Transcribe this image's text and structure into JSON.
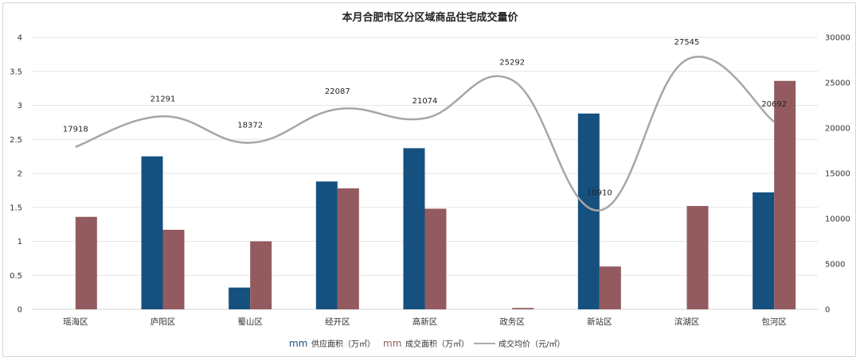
{
  "chart_data": {
    "type": "bar-line-combo",
    "title": "本月合肥市区分区域商品住宅成交量价",
    "categories": [
      "瑶海区",
      "庐阳区",
      "蜀山区",
      "经开区",
      "高新区",
      "政务区",
      "新站区",
      "滨湖区",
      "包河区"
    ],
    "left_axis": {
      "min": 0,
      "max": 4,
      "ticks": [
        "0",
        "0.5",
        "1",
        "1.5",
        "2",
        "2.5",
        "3",
        "3.5",
        "4"
      ]
    },
    "right_axis": {
      "min": 0,
      "max": 30000,
      "ticks": [
        "0",
        "5000",
        "10000",
        "15000",
        "20000",
        "25000",
        "30000"
      ]
    },
    "series": [
      {
        "name": "供应面积（万㎡）",
        "type": "bar",
        "axis": "left",
        "color": "#16507f",
        "values": [
          0,
          2.25,
          0.32,
          1.88,
          2.37,
          0,
          2.88,
          0,
          1.72
        ]
      },
      {
        "name": "成交面积（万㎡）",
        "type": "bar",
        "axis": "left",
        "color": "#935b5f",
        "values": [
          1.36,
          1.17,
          1.0,
          1.78,
          1.48,
          0.02,
          0.63,
          1.52,
          3.36
        ]
      },
      {
        "name": "成交均价（元/㎡）",
        "type": "line",
        "axis": "right",
        "color": "#a6a6a6",
        "values": [
          17918,
          21291,
          18372,
          22087,
          21074,
          25292,
          10910,
          27545,
          20692
        ],
        "labels": [
          "17918",
          "21291",
          "18372",
          "22087",
          "21074",
          "25292",
          "10910",
          "27545",
          "20692"
        ]
      }
    ],
    "legend": {
      "position": "bottom",
      "marker_text": "mm"
    }
  }
}
